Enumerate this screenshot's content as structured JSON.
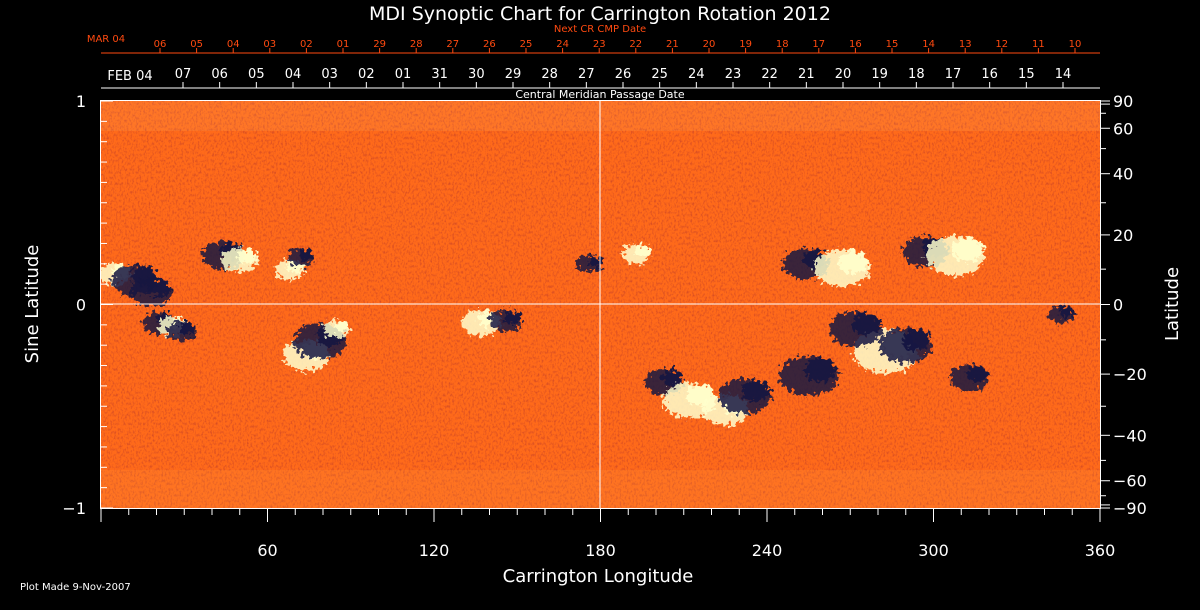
{
  "colors": {
    "background": "#000000",
    "text": "#ffffff",
    "accent": "#ff4a10",
    "map_base": "#ff6a1a",
    "map_dark": "#f03a10",
    "positive_polarity": "#ffffcc",
    "negative_polarity": "#141440"
  },
  "footer": {
    "plot_made": "Plot Made  9-Nov-2007"
  },
  "chart_data": {
    "type": "heatmap",
    "title": "MDI Synoptic Chart for Carrington Rotation 2012",
    "xlabel": "Carrington Longitude",
    "ylabel_left": "Sine Latitude",
    "ylabel_right": "Latitude",
    "xlim": [
      0,
      360
    ],
    "ylim": [
      -1,
      1
    ],
    "x_ticks": [
      60,
      120,
      180,
      240,
      300,
      360
    ],
    "y_ticks_left": [
      {
        "value": 1,
        "label": "1"
      },
      {
        "value": 0,
        "label": "0"
      },
      {
        "value": -1,
        "label": "−1"
      }
    ],
    "y_ticks_right": [
      90,
      60,
      40,
      20,
      0,
      -20,
      -40,
      -60,
      -90
    ],
    "y_ticks_right_labels": [
      "90",
      "60",
      "40",
      "20",
      "0",
      "−20",
      "−40",
      "−60",
      "−90"
    ],
    "top_axis_label": "Central Meridian Passage Date",
    "top_axis_dates": [
      "07",
      "06",
      "05",
      "04",
      "03",
      "02",
      "01",
      "31",
      "30",
      "29",
      "28",
      "27",
      "26",
      "25",
      "24",
      "23",
      "22",
      "21",
      "20",
      "19",
      "18",
      "17",
      "16",
      "15",
      "14"
    ],
    "top_axis_start": "FEB 04",
    "next_cr_label": "Next CR CMP Date",
    "next_cr_start": "MAR 04",
    "next_cr_dates": [
      "06",
      "05",
      "04",
      "03",
      "02",
      "01",
      "29",
      "28",
      "27",
      "26",
      "25",
      "24",
      "23",
      "22",
      "21",
      "20",
      "19",
      "18",
      "17",
      "16",
      "15",
      "14",
      "13",
      "12",
      "11",
      "10"
    ],
    "grid": "equator and 180° meridian lines",
    "active_regions": [
      {
        "lon": 5,
        "sinlat": 0.15,
        "polarity": "positive",
        "size": 1.0
      },
      {
        "lon": 12,
        "sinlat": 0.12,
        "polarity": "negative",
        "size": 1.4
      },
      {
        "lon": 18,
        "sinlat": 0.06,
        "polarity": "negative",
        "size": 1.3
      },
      {
        "lon": 21,
        "sinlat": -0.09,
        "polarity": "negative",
        "size": 1.0
      },
      {
        "lon": 26,
        "sinlat": -0.11,
        "polarity": "positive",
        "size": 0.9
      },
      {
        "lon": 29,
        "sinlat": -0.13,
        "polarity": "negative",
        "size": 0.9
      },
      {
        "lon": 44,
        "sinlat": 0.24,
        "polarity": "negative",
        "size": 1.3
      },
      {
        "lon": 50,
        "sinlat": 0.22,
        "polarity": "positive",
        "size": 1.1
      },
      {
        "lon": 68,
        "sinlat": 0.17,
        "polarity": "positive",
        "size": 0.9
      },
      {
        "lon": 72,
        "sinlat": 0.23,
        "polarity": "negative",
        "size": 0.8
      },
      {
        "lon": 74,
        "sinlat": -0.25,
        "polarity": "positive",
        "size": 1.4
      },
      {
        "lon": 79,
        "sinlat": -0.18,
        "polarity": "negative",
        "size": 1.6
      },
      {
        "lon": 85,
        "sinlat": -0.12,
        "polarity": "positive",
        "size": 0.8
      },
      {
        "lon": 137,
        "sinlat": -0.09,
        "polarity": "positive",
        "size": 1.2
      },
      {
        "lon": 146,
        "sinlat": -0.08,
        "polarity": "negative",
        "size": 1.0
      },
      {
        "lon": 176,
        "sinlat": 0.2,
        "polarity": "negative",
        "size": 0.8
      },
      {
        "lon": 193,
        "sinlat": 0.25,
        "polarity": "positive",
        "size": 0.9
      },
      {
        "lon": 203,
        "sinlat": -0.38,
        "polarity": "negative",
        "size": 1.2
      },
      {
        "lon": 212,
        "sinlat": -0.47,
        "polarity": "positive",
        "size": 1.6
      },
      {
        "lon": 225,
        "sinlat": -0.52,
        "polarity": "positive",
        "size": 1.4
      },
      {
        "lon": 232,
        "sinlat": -0.45,
        "polarity": "negative",
        "size": 1.6
      },
      {
        "lon": 255,
        "sinlat": -0.35,
        "polarity": "negative",
        "size": 1.8
      },
      {
        "lon": 254,
        "sinlat": 0.2,
        "polarity": "negative",
        "size": 1.4
      },
      {
        "lon": 267,
        "sinlat": 0.18,
        "polarity": "positive",
        "size": 1.7
      },
      {
        "lon": 283,
        "sinlat": -0.23,
        "polarity": "positive",
        "size": 2.0
      },
      {
        "lon": 290,
        "sinlat": -0.2,
        "polarity": "negative",
        "size": 1.6
      },
      {
        "lon": 272,
        "sinlat": -0.12,
        "polarity": "negative",
        "size": 1.6
      },
      {
        "lon": 297,
        "sinlat": 0.26,
        "polarity": "negative",
        "size": 1.4
      },
      {
        "lon": 308,
        "sinlat": 0.24,
        "polarity": "positive",
        "size": 1.8
      },
      {
        "lon": 313,
        "sinlat": -0.36,
        "polarity": "negative",
        "size": 1.2
      },
      {
        "lon": 346,
        "sinlat": -0.05,
        "polarity": "negative",
        "size": 0.8
      }
    ]
  }
}
